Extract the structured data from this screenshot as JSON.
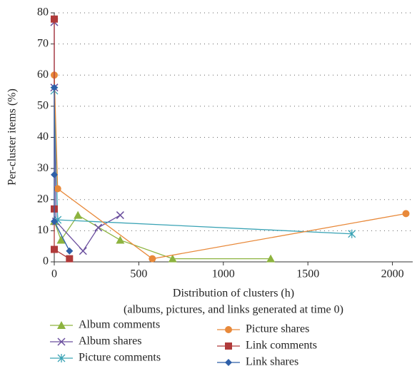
{
  "chart_data": {
    "type": "line",
    "x_label": "Distribution of clusters (h)",
    "x_sublabel": "(albums, pictures, and links generated at time 0)",
    "y_label": "Per-cluster items (%)",
    "xlim": [
      0,
      2120
    ],
    "xticks": [
      0,
      500,
      1000,
      1500,
      2000
    ],
    "ylim": [
      0,
      80
    ],
    "yticks": [
      0,
      10,
      20,
      30,
      40,
      50,
      60,
      70,
      80
    ],
    "grid": true,
    "series": [
      {
        "name": "Album comments",
        "color": "#8db33f",
        "marker": "triangle",
        "x": [
          0,
          40,
          140,
          390,
          700,
          1280
        ],
        "values": [
          13,
          7,
          15,
          7,
          1,
          1
        ]
      },
      {
        "name": "Album shares",
        "color": "#6b4f9e",
        "marker": "x",
        "x": [
          0,
          0,
          10,
          170,
          260,
          390
        ],
        "values": [
          77,
          56,
          13,
          3.5,
          11,
          15
        ]
      },
      {
        "name": "Picture comments",
        "color": "#3aa3b5",
        "marker": "star",
        "x": [
          0,
          20,
          1760
        ],
        "values": [
          55,
          13.5,
          9
        ]
      },
      {
        "name": "Picture shares",
        "color": "#e8893a",
        "marker": "circle",
        "x": [
          0,
          20,
          580,
          2080
        ],
        "values": [
          60,
          23.5,
          1,
          15.5
        ]
      },
      {
        "name": "Link comments",
        "color": "#b03a3a",
        "marker": "square",
        "x": [
          0,
          0,
          0,
          90
        ],
        "values": [
          78,
          17,
          4,
          1
        ]
      },
      {
        "name": "Link shares",
        "color": "#2e5fa8",
        "marker": "diamond",
        "x": [
          0,
          0,
          0,
          90
        ],
        "values": [
          56,
          28,
          13,
          3.5
        ]
      }
    ]
  }
}
